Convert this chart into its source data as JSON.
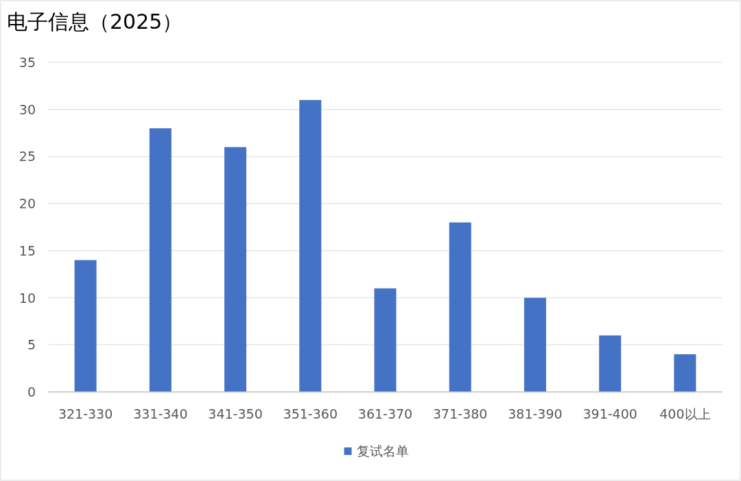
{
  "chart_data": {
    "type": "bar",
    "title": "电子信息（2025）",
    "categories": [
      "321-330",
      "331-340",
      "341-350",
      "351-360",
      "361-370",
      "371-380",
      "381-390",
      "391-400",
      "400以上"
    ],
    "series": [
      {
        "name": "复试名单",
        "color": "#4472c4",
        "values": [
          14,
          28,
          26,
          31,
          11,
          18,
          10,
          6,
          4
        ]
      }
    ],
    "ylim": [
      0,
      35
    ],
    "yticks": [
      0,
      5,
      10,
      15,
      20,
      25,
      30,
      35
    ],
    "grid": "y",
    "legend": "bottom"
  }
}
